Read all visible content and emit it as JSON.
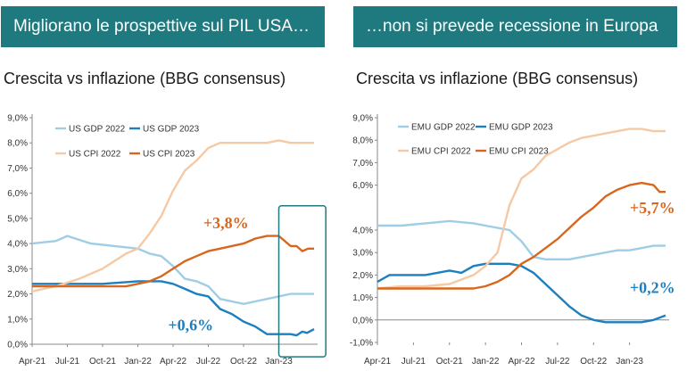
{
  "headers": {
    "left_banner": "Migliorano le prospettive sul PIL USA…",
    "right_banner": "…non si prevede recessione in Europa"
  },
  "chart_data": [
    {
      "type": "line",
      "title": "Crescita vs inflazione (BBG consensus)",
      "x_ticks": [
        "Apr-21",
        "Jul-21",
        "Oct-21",
        "Jan-22",
        "Apr-22",
        "Jul-22",
        "Oct-22",
        "Jan-23"
      ],
      "x_range": [
        0,
        24
      ],
      "y_ticks": [
        "0,0%",
        "1,0%",
        "2,0%",
        "3,0%",
        "4,0%",
        "5,0%",
        "6,0%",
        "7,0%",
        "8,0%",
        "9,0%"
      ],
      "ylim": [
        0,
        9
      ],
      "legend": "top-left, two columns",
      "series": [
        {
          "name": "US GDP 2022",
          "color": "#9fcde6",
          "x": [
            0,
            2,
            3,
            5,
            7,
            9,
            10,
            11,
            12,
            13,
            14,
            15,
            16,
            17,
            18,
            19,
            20,
            21,
            22,
            23,
            24
          ],
          "y": [
            4.0,
            4.1,
            4.3,
            4.0,
            3.9,
            3.8,
            3.6,
            3.5,
            3.1,
            2.6,
            2.5,
            2.3,
            1.8,
            1.7,
            1.6,
            1.7,
            1.8,
            1.9,
            2.0,
            2.0,
            2.0
          ]
        },
        {
          "name": "US GDP 2023",
          "color": "#1b7fc0",
          "x": [
            0,
            4,
            6,
            9,
            11,
            12,
            13,
            14,
            15,
            16,
            17,
            18,
            19,
            20,
            21,
            22,
            22.5,
            23,
            23.4,
            24
          ],
          "y": [
            2.4,
            2.4,
            2.4,
            2.5,
            2.5,
            2.4,
            2.2,
            2.0,
            1.9,
            1.4,
            1.2,
            0.9,
            0.7,
            0.4,
            0.4,
            0.4,
            0.35,
            0.5,
            0.45,
            0.6
          ]
        },
        {
          "name": "US CPI 2022",
          "color": "#f6c9a5",
          "x": [
            0,
            2,
            4,
            6,
            8,
            9,
            10,
            11,
            12,
            13,
            14,
            15,
            16,
            17,
            18,
            19,
            20,
            21,
            22,
            23,
            24
          ],
          "y": [
            2.1,
            2.3,
            2.6,
            3.0,
            3.6,
            3.8,
            4.4,
            5.1,
            6.1,
            6.9,
            7.3,
            7.8,
            8.0,
            8.0,
            8.0,
            8.0,
            8.0,
            8.1,
            8.0,
            8.0,
            8.0
          ]
        },
        {
          "name": "US CPI 2023",
          "color": "#d9661f",
          "x": [
            0,
            2,
            4,
            6,
            8,
            9,
            10,
            11,
            12,
            13,
            14,
            15,
            16,
            17,
            18,
            19,
            20,
            21,
            22,
            22.5,
            23,
            23.5,
            24
          ],
          "y": [
            2.3,
            2.3,
            2.3,
            2.3,
            2.3,
            2.4,
            2.5,
            2.7,
            3.0,
            3.3,
            3.5,
            3.7,
            3.8,
            3.9,
            4.0,
            4.2,
            4.3,
            4.3,
            3.9,
            3.9,
            3.7,
            3.8,
            3.8
          ]
        }
      ],
      "annotations": [
        {
          "text": "+3,8%",
          "color": "#d9661f",
          "x": 16.5,
          "y": 4.6
        },
        {
          "text": "+0,6%",
          "color": "#1b7fc0",
          "x": 13.5,
          "y": 0.55
        }
      ],
      "highlight_box": {
        "x_range": [
          21,
          25
        ],
        "y_range": [
          -0.5,
          5.5
        ]
      }
    },
    {
      "type": "line",
      "title": "Crescita vs inflazione (BBG consensus)",
      "x_ticks": [
        "Apr-21",
        "Jul-21",
        "Oct-21",
        "Jan-22",
        "Apr-22",
        "Jul-22",
        "Oct-22",
        "Jan-23"
      ],
      "x_range": [
        0,
        24
      ],
      "y_ticks": [
        "-1,0%",
        "0,0%",
        "1,0%",
        "2,0%",
        "3,0%",
        "4,0%",
        "6,0%",
        "7,0%",
        "8,0%",
        "9,0%"
      ],
      "ylim": [
        -1,
        9
      ],
      "legend": "top-left, two columns",
      "series": [
        {
          "name": "EMU GDP 2022",
          "color": "#9fcde6",
          "x": [
            0,
            2,
            4,
            6,
            8,
            9,
            10,
            11,
            12,
            13,
            14,
            15,
            16,
            17,
            18,
            19,
            20,
            21,
            22,
            23,
            24
          ],
          "y": [
            4.2,
            4.2,
            4.3,
            4.4,
            4.3,
            4.2,
            4.1,
            4.0,
            3.5,
            2.8,
            2.7,
            2.7,
            2.7,
            2.8,
            2.9,
            3.0,
            3.1,
            3.1,
            3.2,
            3.3,
            3.3
          ]
        },
        {
          "name": "EMU GDP 2023",
          "color": "#1b7fc0",
          "x": [
            0,
            1,
            2,
            4,
            6,
            7,
            8,
            9,
            10,
            11,
            12,
            13,
            14,
            15,
            16,
            17,
            18,
            19,
            20,
            21,
            22,
            23,
            24
          ],
          "y": [
            1.7,
            2.0,
            2.0,
            2.0,
            2.2,
            2.1,
            2.4,
            2.5,
            2.5,
            2.5,
            2.4,
            2.1,
            1.6,
            1.1,
            0.6,
            0.2,
            0.0,
            -0.1,
            -0.1,
            -0.1,
            -0.1,
            0.0,
            0.2
          ]
        },
        {
          "name": "EMU CPI 2022",
          "color": "#f6c9a5",
          "x": [
            0,
            2,
            4,
            6,
            8,
            9,
            10,
            11,
            12,
            13,
            14,
            15,
            16,
            17,
            18,
            19,
            20,
            21,
            22,
            23,
            24
          ],
          "y": [
            1.4,
            1.5,
            1.5,
            1.6,
            2.0,
            2.4,
            3.0,
            5.1,
            6.3,
            6.7,
            7.3,
            7.6,
            7.9,
            8.1,
            8.2,
            8.3,
            8.4,
            8.5,
            8.5,
            8.4,
            8.4
          ]
        },
        {
          "name": "EMU CPI 2023",
          "color": "#d9661f",
          "x": [
            0,
            2,
            4,
            6,
            8,
            9,
            10,
            11,
            12,
            13,
            14,
            15,
            16,
            17,
            18,
            19,
            20,
            21,
            22,
            23,
            23.5,
            24
          ],
          "y": [
            1.4,
            1.4,
            1.4,
            1.4,
            1.4,
            1.5,
            1.7,
            2.0,
            2.5,
            2.8,
            3.2,
            3.6,
            4.1,
            4.6,
            5.0,
            5.5,
            5.8,
            6.0,
            6.1,
            6.0,
            5.7,
            5.7
          ]
        }
      ],
      "annotations": [
        {
          "text": "+5,7%",
          "color": "#d9661f",
          "x": 22.9,
          "y": 4.75
        },
        {
          "text": "+0,2%",
          "color": "#1b7fc0",
          "x": 22.9,
          "y": 1.2
        }
      ]
    }
  ]
}
